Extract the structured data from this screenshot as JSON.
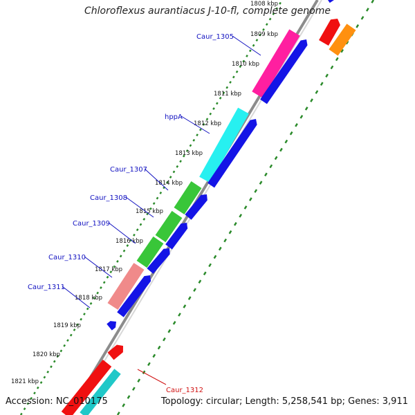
{
  "title": "Chloroflexus aurantiacus J-10-fl, complete genome",
  "footer": {
    "accession": "Accession: NC_010175",
    "summary": "Topology: circular; Length: 5,258,541 bp; Genes: 3,911"
  },
  "colors": {
    "backbone": "#8c8c8c",
    "ticks": "#2a8a2a",
    "cds_reverse": "#1414e6",
    "label_blue": "#1010c0",
    "label_red": "#d01010"
  },
  "tick_labels": [
    "1808 kbp",
    "1809 kbp",
    "1810 kbp",
    "1811 kbp",
    "1812 kbp",
    "1813 kbp",
    "1814 kbp",
    "1815 kbp",
    "1816 kbp",
    "1817 kbp",
    "1818 kbp",
    "1819 kbp",
    "1820 kbp",
    "1821 kbp"
  ],
  "gene_labels": [
    {
      "text": "Caur_1305",
      "color": "blue"
    },
    {
      "text": "hppA",
      "color": "blue"
    },
    {
      "text": "Caur_1307",
      "color": "blue"
    },
    {
      "text": "Caur_1308",
      "color": "blue"
    },
    {
      "text": "Caur_1309",
      "color": "blue"
    },
    {
      "text": "Caur_1310",
      "color": "blue"
    },
    {
      "text": "Caur_1311",
      "color": "blue"
    },
    {
      "text": "Caur_1312",
      "color": "red"
    }
  ]
}
